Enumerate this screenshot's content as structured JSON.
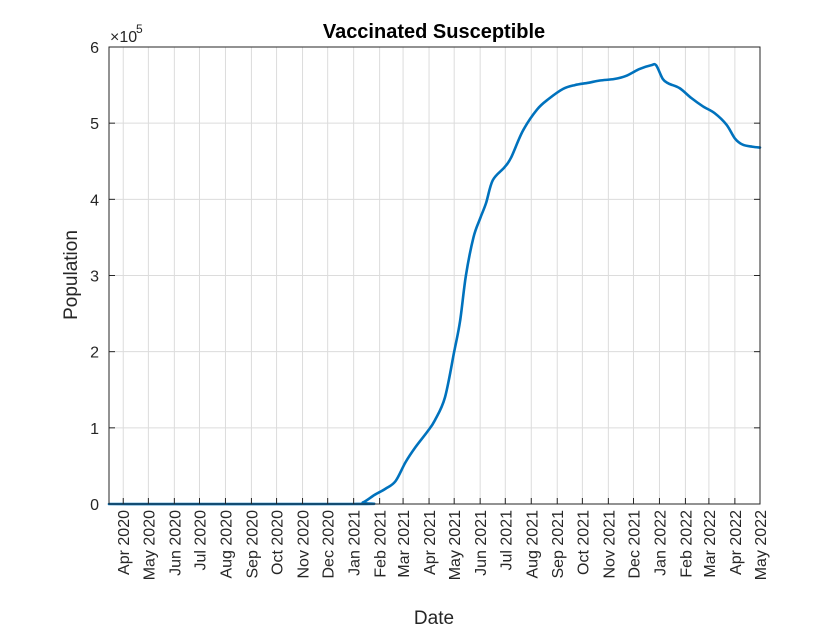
{
  "chart_data": {
    "type": "line",
    "title": "Vaccinated Susceptible",
    "xlabel": "Date",
    "ylabel": "Population",
    "y_multiplier": {
      "base": "×10",
      "exponent": "5"
    },
    "ylim": [
      0,
      6
    ],
    "yticks": [
      "0",
      "1",
      "2",
      "3",
      "4",
      "5",
      "6"
    ],
    "xlim": [
      "2020-03-15",
      "2022-05-01"
    ],
    "xticks": [
      {
        "label": "Apr 2020",
        "date": "2020-04-01"
      },
      {
        "label": "May 2020",
        "date": "2020-05-01"
      },
      {
        "label": "Jun 2020",
        "date": "2020-06-01"
      },
      {
        "label": "Jul 2020",
        "date": "2020-07-01"
      },
      {
        "label": "Aug 2020",
        "date": "2020-08-01"
      },
      {
        "label": "Sep 2020",
        "date": "2020-09-01"
      },
      {
        "label": "Oct 2020",
        "date": "2020-10-01"
      },
      {
        "label": "Nov 2020",
        "date": "2020-11-01"
      },
      {
        "label": "Dec 2020",
        "date": "2020-12-01"
      },
      {
        "label": "Jan 2021",
        "date": "2021-01-01"
      },
      {
        "label": "Feb 2021",
        "date": "2021-02-01"
      },
      {
        "label": "Mar 2021",
        "date": "2021-03-01"
      },
      {
        "label": "Apr 2021",
        "date": "2021-04-01"
      },
      {
        "label": "May 2021",
        "date": "2021-05-01"
      },
      {
        "label": "Jun 2021",
        "date": "2021-06-01"
      },
      {
        "label": "Jul 2021",
        "date": "2021-07-01"
      },
      {
        "label": "Aug 2021",
        "date": "2021-08-01"
      },
      {
        "label": "Sep 2021",
        "date": "2021-09-01"
      },
      {
        "label": "Oct 2021",
        "date": "2021-10-01"
      },
      {
        "label": "Nov 2021",
        "date": "2021-11-01"
      },
      {
        "label": "Dec 2021",
        "date": "2021-12-01"
      },
      {
        "label": "Jan 2022",
        "date": "2022-01-01"
      },
      {
        "label": "Feb 2022",
        "date": "2022-02-01"
      },
      {
        "label": "Mar 2022",
        "date": "2022-03-01"
      },
      {
        "label": "Apr 2022",
        "date": "2022-04-01"
      },
      {
        "label": "May 2022",
        "date": "2022-05-01"
      }
    ],
    "grid": true,
    "series": [
      {
        "color": "#0072bd",
        "points": [
          [
            "2020-03-15",
            0
          ],
          [
            "2021-01-01",
            0
          ],
          [
            "2021-01-12",
            0.02
          ],
          [
            "2021-01-26",
            0.12
          ],
          [
            "2021-02-08",
            0.2
          ],
          [
            "2021-02-20",
            0.3
          ],
          [
            "2021-03-04",
            0.55
          ],
          [
            "2021-03-16",
            0.75
          ],
          [
            "2021-03-30",
            0.95
          ],
          [
            "2021-04-08",
            1.1
          ],
          [
            "2021-04-20",
            1.4
          ],
          [
            "2021-05-01",
            2.0
          ],
          [
            "2021-05-08",
            2.4
          ],
          [
            "2021-05-15",
            3.0
          ],
          [
            "2021-05-24",
            3.5
          ],
          [
            "2021-06-01",
            3.75
          ],
          [
            "2021-06-08",
            3.95
          ],
          [
            "2021-06-16",
            4.25
          ],
          [
            "2021-06-30",
            4.42
          ],
          [
            "2021-07-08",
            4.55
          ],
          [
            "2021-07-22",
            4.9
          ],
          [
            "2021-08-08",
            5.18
          ],
          [
            "2021-08-22",
            5.32
          ],
          [
            "2021-09-08",
            5.45
          ],
          [
            "2021-09-22",
            5.5
          ],
          [
            "2021-10-08",
            5.53
          ],
          [
            "2021-10-22",
            5.56
          ],
          [
            "2021-11-08",
            5.58
          ],
          [
            "2021-11-22",
            5.62
          ],
          [
            "2021-12-08",
            5.71
          ],
          [
            "2021-12-22",
            5.76
          ],
          [
            "2021-12-28",
            5.76
          ],
          [
            "2022-01-05",
            5.58
          ],
          [
            "2022-01-12",
            5.52
          ],
          [
            "2022-01-25",
            5.46
          ],
          [
            "2022-02-08",
            5.33
          ],
          [
            "2022-02-22",
            5.22
          ],
          [
            "2022-03-08",
            5.13
          ],
          [
            "2022-03-22",
            4.98
          ],
          [
            "2022-04-01",
            4.8
          ],
          [
            "2022-04-10",
            4.72
          ],
          [
            "2022-04-22",
            4.69
          ],
          [
            "2022-05-01",
            4.68
          ]
        ]
      }
    ]
  }
}
